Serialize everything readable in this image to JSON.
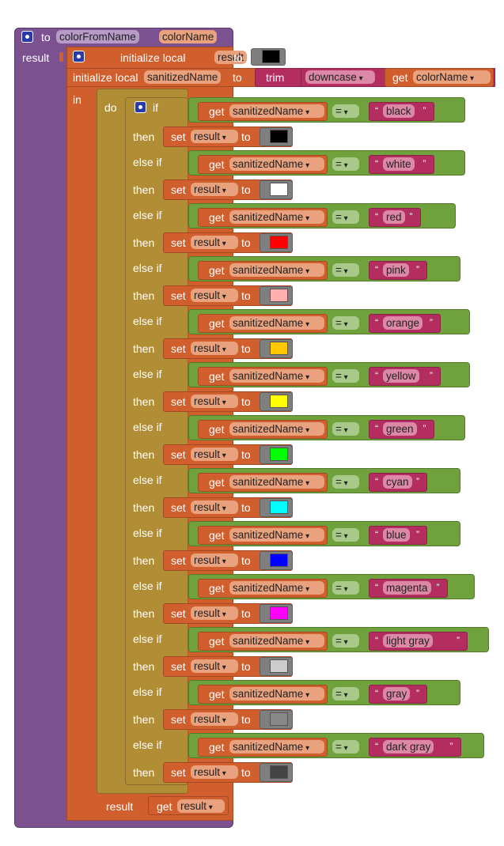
{
  "procedure": {
    "keyword": "to",
    "name": "colorFromName",
    "param": "colorName",
    "result_label": "result"
  },
  "init1": {
    "label": "initialize local",
    "var": "result",
    "to": "to",
    "color": "#000000"
  },
  "init2": {
    "label": "initialize local",
    "var": "sanitizedName",
    "to": "to",
    "trim": "trim",
    "downcase": "downcase",
    "get": "get",
    "get_var": "colorName",
    "in": "in"
  },
  "ifblock": {
    "do": "do",
    "if": "if",
    "then": "then",
    "else_if": "else if",
    "get": "get",
    "var": "sanitizedName",
    "op": "=",
    "set": "set",
    "set_var": "result",
    "to": "to"
  },
  "clauses": [
    {
      "name": "black",
      "color": "#000000"
    },
    {
      "name": "white",
      "color": "#ffffff"
    },
    {
      "name": "red",
      "color": "#ff0000"
    },
    {
      "name": "pink",
      "color": "#ffafaf"
    },
    {
      "name": "orange",
      "color": "#ffc800"
    },
    {
      "name": "yellow",
      "color": "#ffff00"
    },
    {
      "name": "green",
      "color": "#00ff00"
    },
    {
      "name": "cyan",
      "color": "#00ffff"
    },
    {
      "name": "blue",
      "color": "#0000ff"
    },
    {
      "name": "magenta",
      "color": "#ff00ff"
    },
    {
      "name": "light gray",
      "color": "#cccccc"
    },
    {
      "name": "gray",
      "color": "#888888"
    },
    {
      "name": "dark gray",
      "color": "#444444"
    }
  ],
  "footer": {
    "result": "result",
    "get": "get",
    "var": "result"
  }
}
